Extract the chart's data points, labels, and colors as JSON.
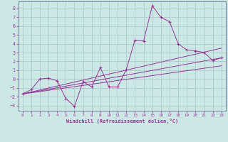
{
  "xlabel": "Windchill (Refroidissement éolien,°C)",
  "bg_color": "#cce8e4",
  "grid_color": "#aacccc",
  "line_color": "#993399",
  "spine_color": "#666699",
  "xlim": [
    -0.5,
    23.5
  ],
  "ylim": [
    -3.6,
    8.8
  ],
  "yticks": [
    -3,
    -2,
    -1,
    0,
    1,
    2,
    3,
    4,
    5,
    6,
    7,
    8
  ],
  "xticks": [
    0,
    1,
    2,
    3,
    4,
    5,
    6,
    7,
    8,
    9,
    10,
    11,
    12,
    13,
    14,
    15,
    16,
    17,
    18,
    19,
    20,
    21,
    22,
    23
  ],
  "main_x": [
    0,
    1,
    2,
    3,
    4,
    5,
    6,
    7,
    8,
    9,
    10,
    11,
    12,
    13,
    14,
    15,
    16,
    17,
    18,
    19,
    20,
    21,
    22,
    23
  ],
  "main_y": [
    -1.7,
    -1.2,
    0.0,
    0.1,
    -0.2,
    -2.2,
    -3.1,
    -0.3,
    -0.9,
    1.3,
    -0.9,
    -0.9,
    1.1,
    4.4,
    4.3,
    8.3,
    7.0,
    6.5,
    4.0,
    3.3,
    3.2,
    3.0,
    2.1,
    2.4
  ],
  "trend_lines": [
    {
      "x": [
        0,
        23
      ],
      "y": [
        -1.7,
        3.5
      ]
    },
    {
      "x": [
        0,
        23
      ],
      "y": [
        -1.7,
        2.4
      ]
    },
    {
      "x": [
        0,
        23
      ],
      "y": [
        -1.7,
        1.5
      ]
    }
  ]
}
